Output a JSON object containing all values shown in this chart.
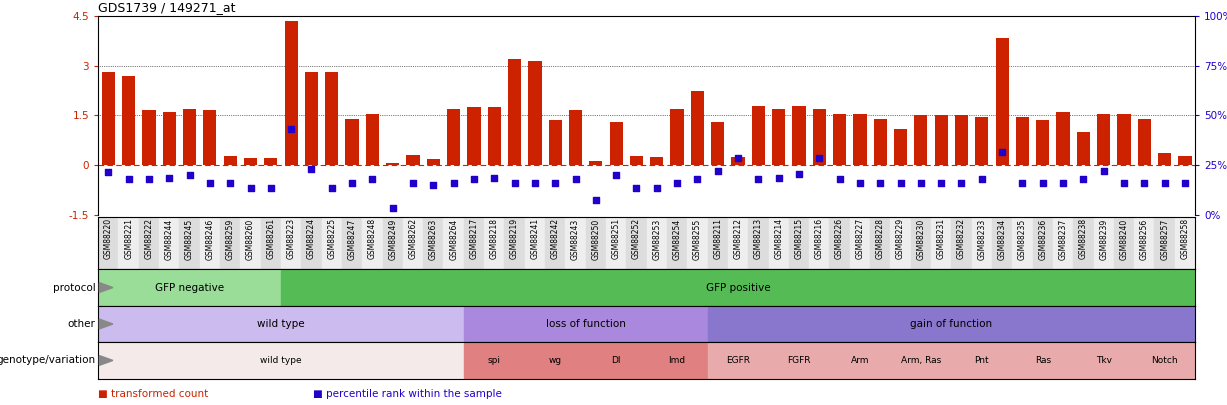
{
  "title": "GDS1739 / 149271_at",
  "samples": [
    "GSM88220",
    "GSM88221",
    "GSM88222",
    "GSM88244",
    "GSM88245",
    "GSM88246",
    "GSM88259",
    "GSM88260",
    "GSM88261",
    "GSM88223",
    "GSM88224",
    "GSM88225",
    "GSM88247",
    "GSM88248",
    "GSM88249",
    "GSM88262",
    "GSM88263",
    "GSM88264",
    "GSM88217",
    "GSM88218",
    "GSM88219",
    "GSM88241",
    "GSM88242",
    "GSM88243",
    "GSM88250",
    "GSM88251",
    "GSM88252",
    "GSM88253",
    "GSM88254",
    "GSM88255",
    "GSM88211",
    "GSM88212",
    "GSM88213",
    "GSM88214",
    "GSM88215",
    "GSM88216",
    "GSM88226",
    "GSM88227",
    "GSM88228",
    "GSM88229",
    "GSM88230",
    "GSM88231",
    "GSM88232",
    "GSM88233",
    "GSM88234",
    "GSM88235",
    "GSM88236",
    "GSM88237",
    "GSM88238",
    "GSM88239",
    "GSM88240",
    "GSM88256",
    "GSM88257",
    "GSM88258"
  ],
  "bar_values": [
    2.8,
    2.7,
    1.65,
    1.6,
    1.7,
    1.65,
    0.27,
    0.2,
    0.2,
    4.35,
    2.8,
    2.8,
    1.4,
    1.55,
    0.07,
    0.3,
    0.17,
    1.7,
    1.75,
    1.75,
    3.2,
    3.15,
    1.35,
    1.65,
    0.12,
    1.3,
    0.28,
    0.23,
    1.7,
    2.25,
    1.3,
    0.25,
    1.8,
    1.7,
    1.8,
    1.7,
    1.55,
    1.55,
    1.4,
    1.1,
    1.5,
    1.5,
    1.5,
    1.45,
    3.85,
    1.45,
    1.35,
    1.6,
    1.0,
    1.55,
    1.55,
    1.4,
    0.35,
    0.27
  ],
  "dot_values": [
    -0.22,
    -0.42,
    -0.42,
    -0.38,
    -0.3,
    -0.55,
    -0.55,
    -0.7,
    -0.7,
    1.1,
    -0.12,
    -0.7,
    -0.55,
    -0.42,
    -1.3,
    -0.55,
    -0.6,
    -0.55,
    -0.42,
    -0.38,
    -0.55,
    -0.55,
    -0.55,
    -0.42,
    -1.05,
    -0.3,
    -0.7,
    -0.68,
    -0.55,
    -0.42,
    -0.17,
    0.22,
    -0.42,
    -0.38,
    -0.28,
    0.22,
    -0.42,
    -0.55,
    -0.55,
    -0.55,
    -0.55,
    -0.55,
    -0.55,
    -0.42,
    0.38,
    -0.55,
    -0.55,
    -0.55,
    -0.42,
    -0.17,
    -0.55,
    -0.55,
    -0.55,
    -0.55
  ],
  "ylim": [
    -1.5,
    4.5
  ],
  "yticks_left": [
    -1.5,
    0.0,
    1.5,
    3.0,
    4.5
  ],
  "yticks_right_pct": [
    0,
    25,
    50,
    75,
    100
  ],
  "bar_color": "#cc2200",
  "dot_color": "#2200cc",
  "protocol_groups": [
    {
      "label": "GFP negative",
      "start": 0,
      "end": 9,
      "color": "#99dd99"
    },
    {
      "label": "GFP positive",
      "start": 9,
      "end": 54,
      "color": "#55bb55"
    }
  ],
  "other_groups": [
    {
      "label": "wild type",
      "start": 0,
      "end": 18,
      "color": "#ccbbee"
    },
    {
      "label": "loss of function",
      "start": 18,
      "end": 30,
      "color": "#aa88dd"
    },
    {
      "label": "gain of function",
      "start": 30,
      "end": 54,
      "color": "#8877cc"
    }
  ],
  "genotype_groups": [
    {
      "label": "wild type",
      "start": 0,
      "end": 18,
      "color": "#f5eaea"
    },
    {
      "label": "spi",
      "start": 18,
      "end": 21,
      "color": "#e08080"
    },
    {
      "label": "wg",
      "start": 21,
      "end": 24,
      "color": "#e08080"
    },
    {
      "label": "Dl",
      "start": 24,
      "end": 27,
      "color": "#e08080"
    },
    {
      "label": "lmd",
      "start": 27,
      "end": 30,
      "color": "#e08080"
    },
    {
      "label": "EGFR",
      "start": 30,
      "end": 33,
      "color": "#e8aaaa"
    },
    {
      "label": "FGFR",
      "start": 33,
      "end": 36,
      "color": "#e8aaaa"
    },
    {
      "label": "Arm",
      "start": 36,
      "end": 39,
      "color": "#e8aaaa"
    },
    {
      "label": "Arm, Ras",
      "start": 39,
      "end": 42,
      "color": "#e8aaaa"
    },
    {
      "label": "Pnt",
      "start": 42,
      "end": 45,
      "color": "#e8aaaa"
    },
    {
      "label": "Ras",
      "start": 45,
      "end": 48,
      "color": "#e8aaaa"
    },
    {
      "label": "Tkv",
      "start": 48,
      "end": 51,
      "color": "#e8aaaa"
    },
    {
      "label": "Notch",
      "start": 51,
      "end": 54,
      "color": "#e8aaaa"
    }
  ],
  "row_labels": [
    "protocol",
    "other",
    "genotype/variation"
  ],
  "legend": [
    {
      "label": "transformed count",
      "color": "#cc2200"
    },
    {
      "label": "percentile rank within the sample",
      "color": "#2200cc"
    }
  ],
  "xtick_bg_even": "#dddddd",
  "xtick_bg_odd": "#eeeeee"
}
